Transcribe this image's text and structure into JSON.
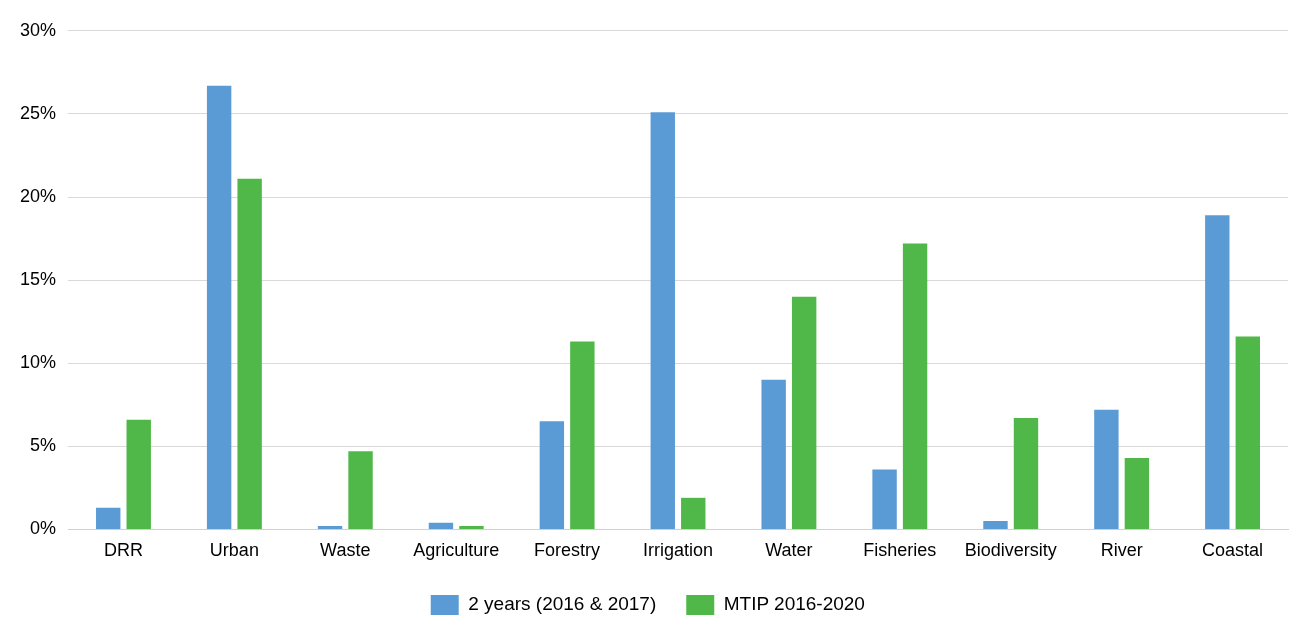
{
  "chart_data": {
    "type": "bar",
    "categories": [
      "DRR",
      "Urban",
      "Waste",
      "Agriculture",
      "Forestry",
      "Irrigation",
      "Water",
      "Fisheries",
      "Biodiversity",
      "River",
      "Coastal"
    ],
    "series": [
      {
        "name": "2 years (2016 & 2017)",
        "color": "#5b9bd5",
        "values": [
          1.3,
          26.7,
          0.2,
          0.4,
          6.5,
          25.1,
          9.0,
          3.6,
          0.5,
          7.2,
          18.9
        ]
      },
      {
        "name": "MTIP 2016-2020",
        "color": "#50b848",
        "values": [
          6.6,
          21.1,
          4.7,
          0.2,
          11.3,
          1.9,
          14.0,
          17.2,
          6.7,
          4.3,
          11.6
        ]
      }
    ],
    "ylim": [
      0,
      30
    ],
    "yticks": [
      {
        "value": 0,
        "label": "0%"
      },
      {
        "value": 5,
        "label": "5%"
      },
      {
        "value": 10,
        "label": "10%"
      },
      {
        "value": 15,
        "label": "15%"
      },
      {
        "value": 20,
        "label": "20%"
      },
      {
        "value": 25,
        "label": "25%"
      },
      {
        "value": 30,
        "label": "30%"
      }
    ],
    "grid": "y",
    "legend": "bottom"
  }
}
